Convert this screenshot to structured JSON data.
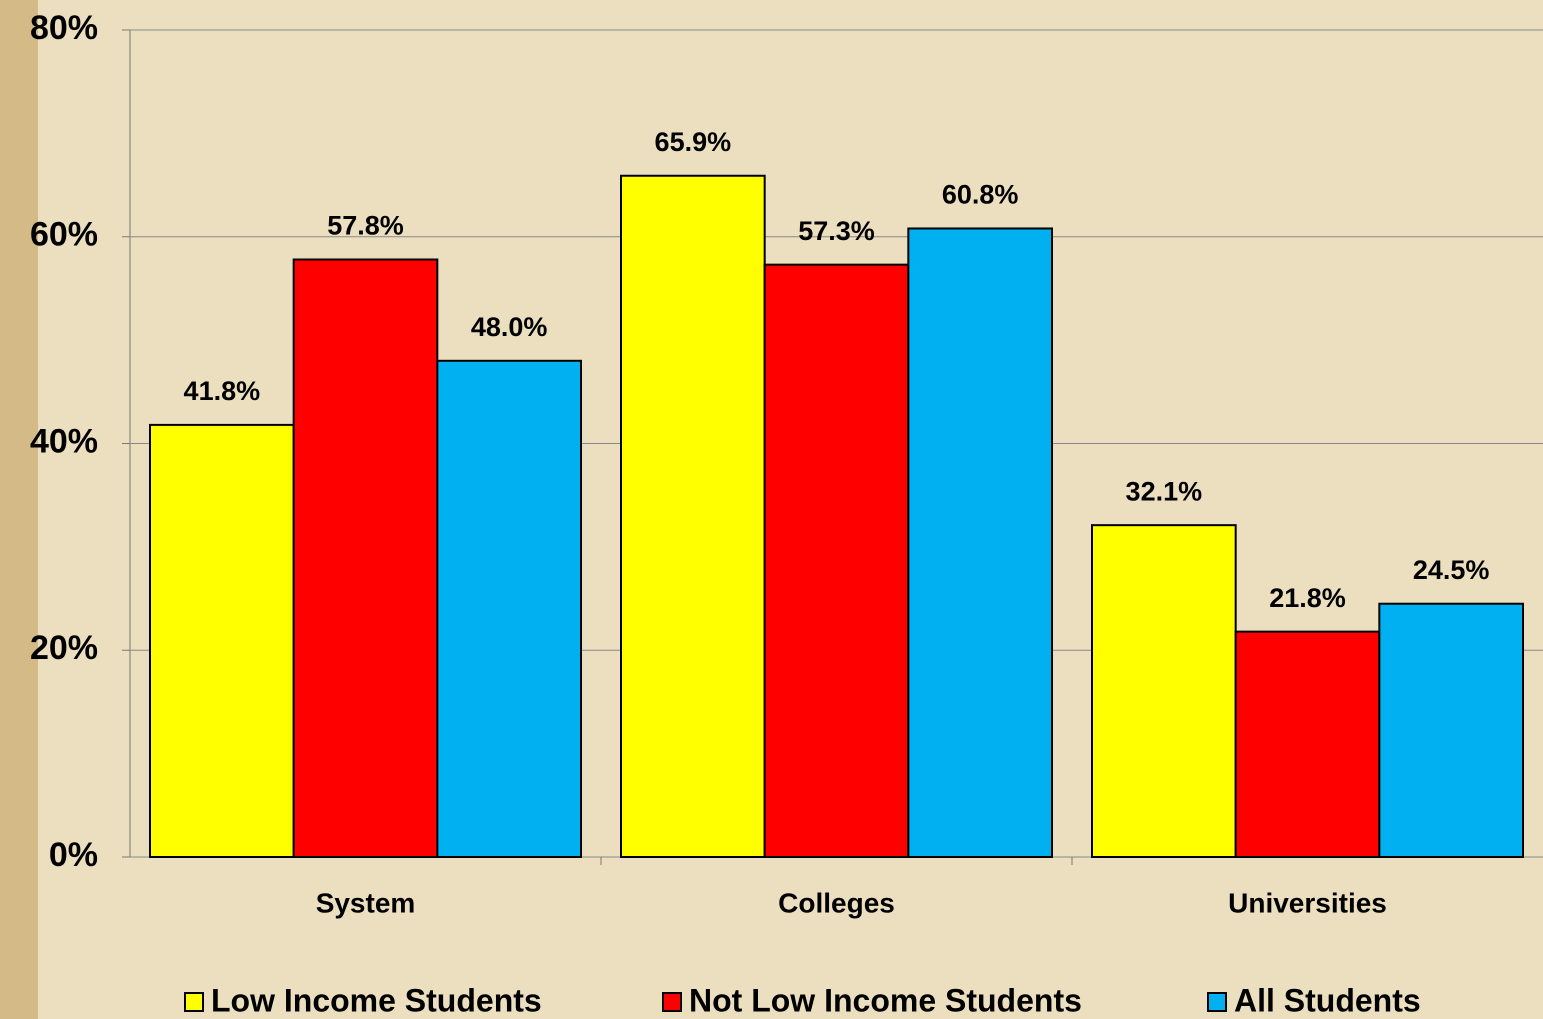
{
  "chart_data": {
    "type": "bar",
    "categories": [
      "System",
      "Colleges",
      "Universities"
    ],
    "series": [
      {
        "name": "Low Income Students",
        "color": "#ffff00",
        "values": [
          41.8,
          65.9,
          32.1
        ],
        "value_labels": [
          "41.8%",
          "65.9%",
          "32.1%"
        ]
      },
      {
        "name": "Not Low Income Students",
        "color": "#ff0000",
        "values": [
          57.8,
          57.3,
          21.8
        ],
        "value_labels": [
          "57.8%",
          "57.3%",
          "21.8%"
        ]
      },
      {
        "name": "All Students",
        "color": "#00b0f0",
        "values": [
          48.0,
          60.8,
          24.5
        ],
        "value_labels": [
          "48.0%",
          "60.8%",
          "24.5%"
        ]
      }
    ],
    "ylim": [
      0,
      80
    ],
    "yticks": [
      {
        "value": 0,
        "label": "0%"
      },
      {
        "value": 20,
        "label": "20%"
      },
      {
        "value": 40,
        "label": "40%"
      },
      {
        "value": 60,
        "label": "60%"
      },
      {
        "value": 80,
        "label": "80%"
      }
    ],
    "grid": true,
    "legend": "bottom"
  }
}
